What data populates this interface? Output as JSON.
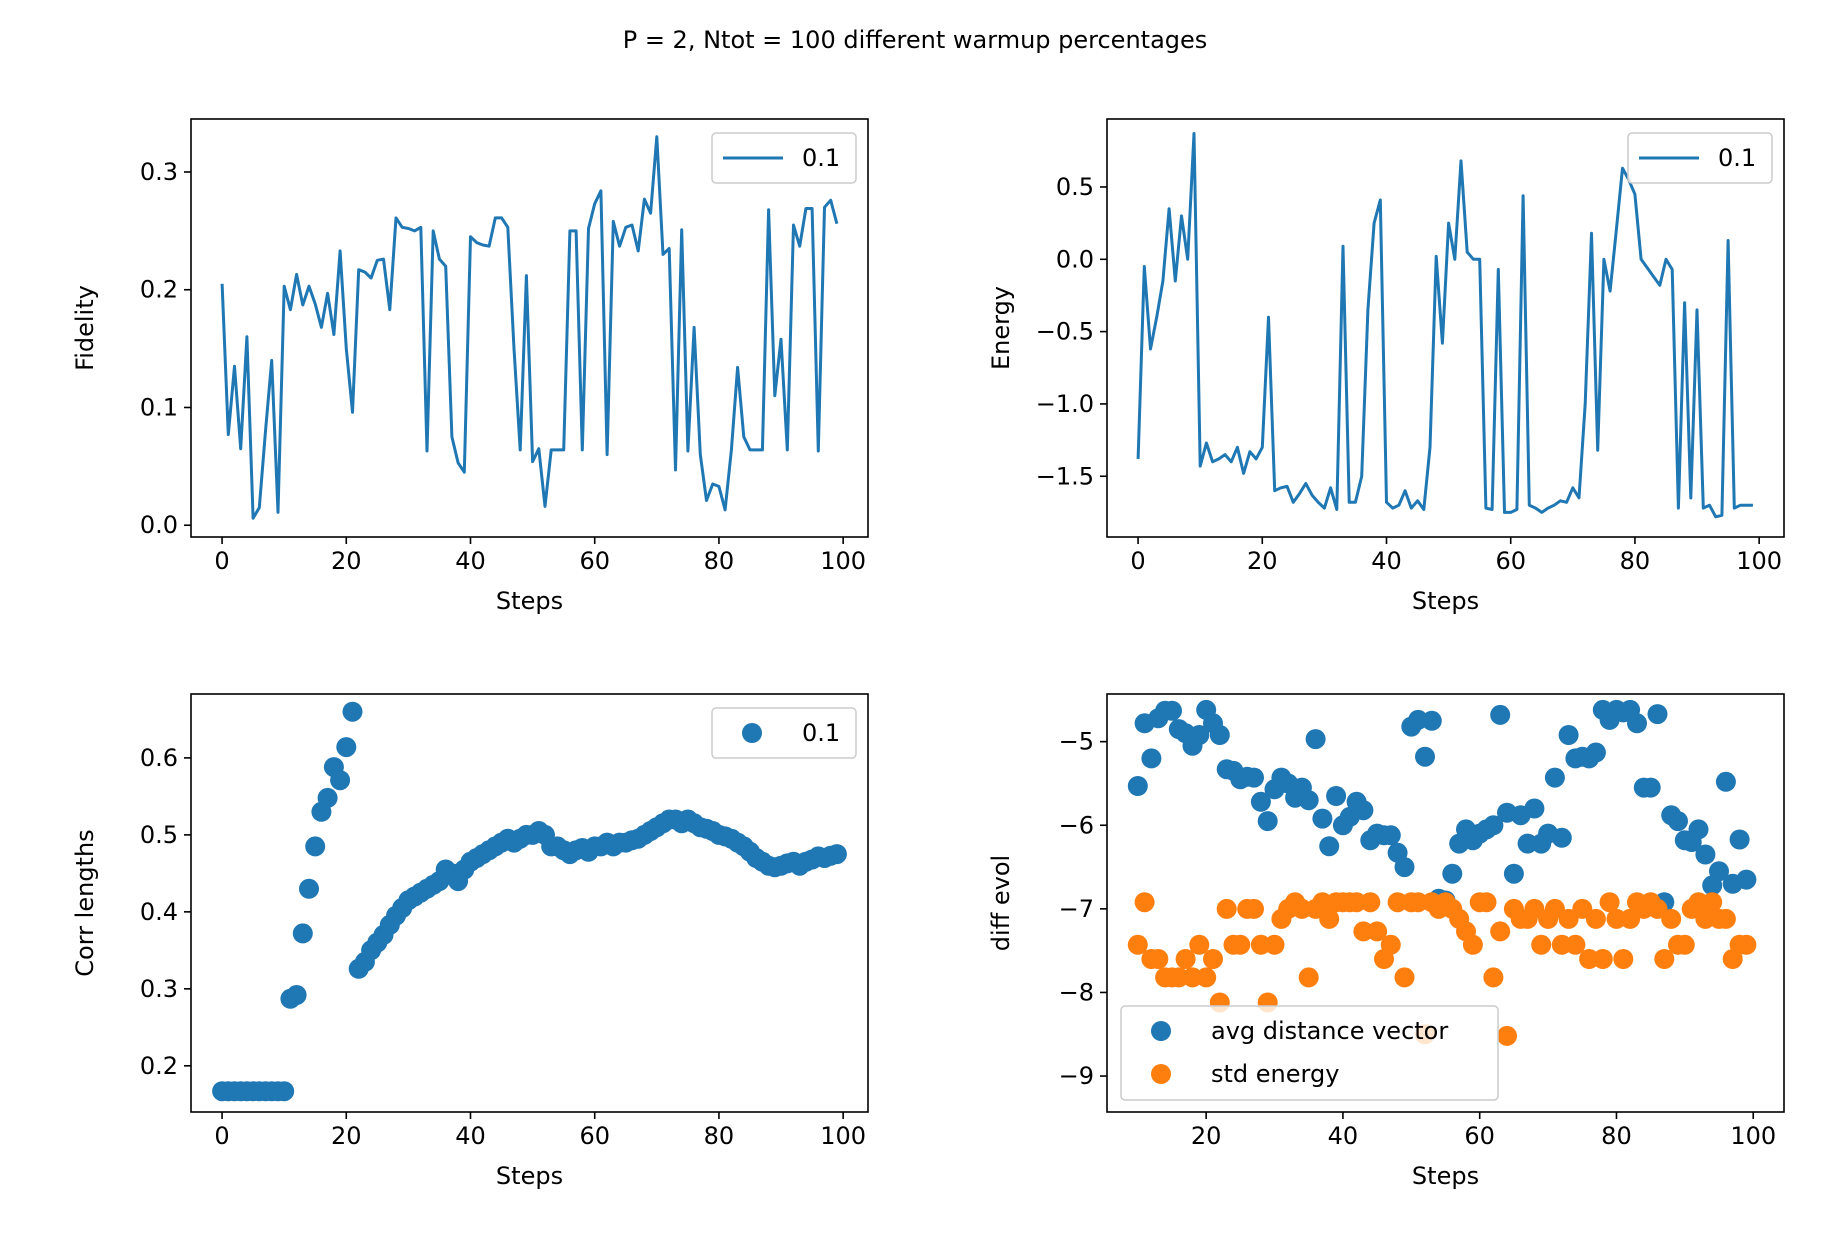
{
  "figure": {
    "title": "P = 2, Ntot = 100 different warmup percentages"
  },
  "chart_data": [
    {
      "type": "line",
      "xlabel": "Steps",
      "ylabel": "Fidelity",
      "xlim": [
        -5,
        104
      ],
      "ylim": [
        -0.01,
        0.345
      ],
      "xticks": [
        0,
        20,
        40,
        60,
        80,
        100
      ],
      "yticks": [
        0.0,
        0.1,
        0.2,
        0.3
      ],
      "yticklabels": [
        "0.0",
        "0.1",
        "0.2",
        "0.3"
      ],
      "legend": {
        "position": "upper right",
        "kind": "line"
      },
      "grid": false,
      "series": [
        {
          "name": "0.1",
          "color": "#1f77b4",
          "x": [
            0,
            1,
            2,
            3,
            4,
            5,
            6,
            7,
            8,
            9,
            10,
            11,
            12,
            13,
            14,
            15,
            16,
            17,
            18,
            19,
            20,
            21,
            22,
            23,
            24,
            25,
            26,
            27,
            28,
            29,
            30,
            31,
            32,
            33,
            34,
            35,
            36,
            37,
            38,
            39,
            40,
            41,
            42,
            43,
            44,
            45,
            46,
            47,
            48,
            49,
            50,
            51,
            52,
            53,
            54,
            55,
            56,
            57,
            58,
            59,
            60,
            61,
            62,
            63,
            64,
            65,
            66,
            67,
            68,
            69,
            70,
            71,
            72,
            73,
            74,
            75,
            76,
            77,
            78,
            79,
            80,
            81,
            82,
            83,
            84,
            85,
            86,
            87,
            88,
            89,
            90,
            91,
            92,
            93,
            94,
            95,
            96,
            97,
            98,
            99
          ],
          "y": [
            0.205,
            0.077,
            0.135,
            0.065,
            0.16,
            0.006,
            0.015,
            0.08,
            0.14,
            0.011,
            0.203,
            0.183,
            0.213,
            0.187,
            0.203,
            0.188,
            0.168,
            0.197,
            0.162,
            0.233,
            0.15,
            0.096,
            0.217,
            0.215,
            0.21,
            0.225,
            0.226,
            0.183,
            0.261,
            0.253,
            0.252,
            0.25,
            0.253,
            0.063,
            0.25,
            0.226,
            0.22,
            0.075,
            0.053,
            0.045,
            0.245,
            0.24,
            0.238,
            0.237,
            0.261,
            0.261,
            0.253,
            0.15,
            0.064,
            0.212,
            0.054,
            0.065,
            0.016,
            0.064,
            0.064,
            0.064,
            0.25,
            0.25,
            0.064,
            0.252,
            0.273,
            0.284,
            0.06,
            0.258,
            0.237,
            0.253,
            0.255,
            0.233,
            0.277,
            0.265,
            0.33,
            0.23,
            0.235,
            0.047,
            0.251,
            0.063,
            0.168,
            0.06,
            0.021,
            0.035,
            0.033,
            0.013,
            0.064,
            0.134,
            0.075,
            0.064,
            0.064,
            0.064,
            0.268,
            0.11,
            0.158,
            0.064,
            0.255,
            0.237,
            0.269,
            0.269,
            0.063,
            0.27,
            0.276,
            0.256
          ]
        }
      ]
    },
    {
      "type": "line",
      "xlabel": "Steps",
      "ylabel": "Energy",
      "xlim": [
        -5,
        104
      ],
      "ylim": [
        -1.92,
        0.97
      ],
      "xticks": [
        0,
        20,
        40,
        60,
        80,
        100
      ],
      "yticks": [
        0.5,
        0.0,
        -0.5,
        -1.0,
        -1.5
      ],
      "yticklabels": [
        "0.5",
        "0.0",
        "−0.5",
        "−1.0",
        "−1.5"
      ],
      "legend": {
        "position": "upper right",
        "kind": "line"
      },
      "grid": false,
      "series": [
        {
          "name": "0.1",
          "color": "#1f77b4",
          "x": [
            0,
            1,
            2,
            3,
            4,
            5,
            6,
            7,
            8,
            9,
            10,
            11,
            12,
            13,
            14,
            15,
            16,
            17,
            18,
            19,
            20,
            21,
            22,
            23,
            24,
            25,
            26,
            27,
            28,
            29,
            30,
            31,
            32,
            33,
            34,
            35,
            36,
            37,
            38,
            39,
            40,
            41,
            42,
            43,
            44,
            45,
            46,
            47,
            48,
            49,
            50,
            51,
            52,
            53,
            54,
            55,
            56,
            57,
            58,
            59,
            60,
            61,
            62,
            63,
            64,
            65,
            66,
            67,
            68,
            69,
            70,
            71,
            72,
            73,
            74,
            75,
            76,
            77,
            78,
            79,
            80,
            81,
            82,
            83,
            84,
            85,
            86,
            87,
            88,
            89,
            90,
            91,
            92,
            93,
            94,
            95,
            96,
            97,
            98,
            99
          ],
          "y": [
            -1.38,
            -0.05,
            -0.62,
            -0.4,
            -0.15,
            0.35,
            -0.15,
            0.3,
            0.0,
            0.87,
            -1.43,
            -1.27,
            -1.4,
            -1.38,
            -1.35,
            -1.4,
            -1.3,
            -1.48,
            -1.33,
            -1.38,
            -1.3,
            -0.4,
            -1.6,
            -1.58,
            -1.57,
            -1.68,
            -1.62,
            -1.55,
            -1.63,
            -1.68,
            -1.72,
            -1.58,
            -1.73,
            0.09,
            -1.68,
            -1.68,
            -1.5,
            -0.35,
            0.25,
            0.41,
            -1.68,
            -1.72,
            -1.7,
            -1.6,
            -1.72,
            -1.67,
            -1.73,
            -1.3,
            0.02,
            -0.58,
            0.25,
            0.0,
            0.68,
            0.05,
            0.0,
            0.0,
            -1.72,
            -1.73,
            -0.07,
            -1.75,
            -1.75,
            -1.73,
            0.44,
            -1.7,
            -1.72,
            -1.75,
            -1.72,
            -1.7,
            -1.67,
            -1.68,
            -1.58,
            -1.65,
            -1.0,
            0.18,
            -1.32,
            0.0,
            -0.22,
            0.2,
            0.63,
            0.55,
            0.45,
            0.0,
            -0.06,
            -0.12,
            -0.18,
            0.0,
            -0.07,
            -1.72,
            -0.3,
            -1.65,
            -0.35,
            -1.72,
            -1.7,
            -1.78,
            -1.77,
            0.13,
            -1.72,
            -1.7,
            -1.7,
            -1.7
          ]
        }
      ]
    },
    {
      "type": "scatter",
      "xlabel": "Steps",
      "ylabel": "Corr lengths",
      "xlim": [
        -5,
        104
      ],
      "ylim": [
        0.14,
        0.683
      ],
      "xticks": [
        0,
        20,
        40,
        60,
        80,
        100
      ],
      "yticks": [
        0.2,
        0.3,
        0.4,
        0.5,
        0.6
      ],
      "yticklabels": [
        "0.2",
        "0.3",
        "0.4",
        "0.5",
        "0.6"
      ],
      "legend": {
        "position": "upper right",
        "kind": "marker"
      },
      "grid": false,
      "series": [
        {
          "name": "0.1",
          "color": "#1f77b4",
          "x": [
            0,
            1,
            2,
            3,
            4,
            5,
            6,
            7,
            8,
            9,
            10,
            11,
            12,
            13,
            14,
            15,
            16,
            17,
            18,
            19,
            20,
            21,
            22,
            23,
            24,
            25,
            26,
            27,
            28,
            29,
            30,
            31,
            32,
            33,
            34,
            35,
            36,
            37,
            38,
            39,
            40,
            41,
            42,
            43,
            44,
            45,
            46,
            47,
            48,
            49,
            50,
            51,
            52,
            53,
            54,
            55,
            56,
            57,
            58,
            59,
            60,
            61,
            62,
            63,
            64,
            65,
            66,
            67,
            68,
            69,
            70,
            71,
            72,
            73,
            74,
            75,
            76,
            77,
            78,
            79,
            80,
            81,
            82,
            83,
            84,
            85,
            86,
            87,
            88,
            89,
            90,
            91,
            92,
            93,
            94,
            95,
            96,
            97,
            98,
            99
          ],
          "y": [
            0.167,
            0.167,
            0.167,
            0.167,
            0.167,
            0.167,
            0.167,
            0.167,
            0.167,
            0.167,
            0.167,
            0.287,
            0.292,
            0.372,
            0.43,
            0.485,
            0.53,
            0.548,
            0.588,
            0.571,
            0.614,
            0.66,
            0.326,
            0.335,
            0.35,
            0.36,
            0.37,
            0.383,
            0.395,
            0.405,
            0.415,
            0.42,
            0.425,
            0.43,
            0.435,
            0.44,
            0.455,
            0.45,
            0.44,
            0.455,
            0.465,
            0.47,
            0.475,
            0.48,
            0.485,
            0.49,
            0.495,
            0.49,
            0.495,
            0.5,
            0.5,
            0.505,
            0.5,
            0.485,
            0.485,
            0.48,
            0.475,
            0.48,
            0.483,
            0.478,
            0.485,
            0.485,
            0.49,
            0.485,
            0.49,
            0.49,
            0.493,
            0.495,
            0.5,
            0.505,
            0.51,
            0.515,
            0.52,
            0.52,
            0.515,
            0.52,
            0.515,
            0.51,
            0.508,
            0.505,
            0.5,
            0.498,
            0.495,
            0.49,
            0.485,
            0.478,
            0.47,
            0.465,
            0.46,
            0.458,
            0.46,
            0.463,
            0.465,
            0.46,
            0.465,
            0.468,
            0.472,
            0.47,
            0.473,
            0.475
          ]
        }
      ]
    },
    {
      "type": "scatter",
      "xlabel": "Steps",
      "ylabel": "diff evol",
      "xlim": [
        5.5,
        104.5
      ],
      "ylim": [
        -9.43,
        -4.43
      ],
      "xticks": [
        20,
        40,
        60,
        80,
        100
      ],
      "yticks": [
        -5,
        -6,
        -7,
        -8,
        -9
      ],
      "yticklabels": [
        "−5",
        "−6",
        "−7",
        "−8",
        "−9"
      ],
      "legend": {
        "position": "lower left",
        "kind": "marker"
      },
      "grid": false,
      "series": [
        {
          "name": "avg distance vector",
          "color": "#1f77b4",
          "x": [
            10,
            11,
            12,
            13,
            14,
            15,
            16,
            17,
            18,
            19,
            20,
            21,
            22,
            23,
            24,
            25,
            26,
            27,
            28,
            29,
            30,
            31,
            32,
            33,
            34,
            35,
            36,
            37,
            38,
            39,
            40,
            41,
            42,
            43,
            44,
            45,
            46,
            47,
            48,
            49,
            50,
            51,
            52,
            53,
            54,
            55,
            56,
            57,
            58,
            59,
            60,
            61,
            62,
            63,
            64,
            65,
            66,
            67,
            68,
            69,
            70,
            71,
            72,
            73,
            74,
            75,
            76,
            77,
            78,
            79,
            80,
            81,
            82,
            83,
            84,
            85,
            86,
            87,
            88,
            89,
            90,
            91,
            92,
            93,
            94,
            95,
            96,
            97,
            98,
            99
          ],
          "y": [
            -5.53,
            -4.78,
            -5.2,
            -4.72,
            -4.63,
            -4.63,
            -4.85,
            -4.9,
            -5.05,
            -4.92,
            -4.62,
            -4.78,
            -4.92,
            -5.33,
            -5.35,
            -5.45,
            -5.42,
            -5.43,
            -5.72,
            -5.95,
            -5.57,
            -5.43,
            -5.5,
            -5.67,
            -5.55,
            -5.7,
            -4.97,
            -5.92,
            -6.25,
            -5.65,
            -6.0,
            -5.9,
            -5.72,
            -5.82,
            -6.18,
            -6.1,
            -6.12,
            -6.12,
            -6.33,
            -6.5,
            -4.82,
            -4.74,
            -5.18,
            -4.75,
            -6.88,
            -6.9,
            -6.58,
            -6.22,
            -6.05,
            -6.18,
            -6.1,
            -6.05,
            -6.0,
            -4.68,
            -5.85,
            -6.58,
            -5.88,
            -6.22,
            -5.8,
            -6.22,
            -6.1,
            -5.43,
            -6.15,
            -4.92,
            -5.2,
            -5.18,
            -5.2,
            -5.13,
            -4.62,
            -4.74,
            -4.62,
            -4.65,
            -4.62,
            -4.78,
            -5.55,
            -5.55,
            -4.67,
            -6.92,
            -5.88,
            -5.95,
            -6.18,
            -6.2,
            -6.05,
            -6.35,
            -6.72,
            -6.55,
            -5.48,
            -6.7,
            -6.17,
            -6.65
          ]
        },
        {
          "name": "std energy",
          "color": "#ff7f0e",
          "x": [
            10,
            11,
            12,
            13,
            14,
            15,
            16,
            17,
            18,
            19,
            20,
            21,
            22,
            23,
            24,
            25,
            26,
            27,
            28,
            29,
            30,
            31,
            32,
            33,
            34,
            35,
            36,
            37,
            38,
            39,
            40,
            41,
            42,
            43,
            44,
            45,
            46,
            47,
            48,
            49,
            50,
            51,
            52,
            53,
            54,
            55,
            56,
            57,
            58,
            59,
            60,
            61,
            62,
            63,
            64,
            65,
            66,
            67,
            68,
            69,
            70,
            71,
            72,
            73,
            74,
            75,
            76,
            77,
            78,
            79,
            80,
            81,
            82,
            83,
            84,
            85,
            86,
            87,
            88,
            89,
            90,
            91,
            92,
            93,
            94,
            95,
            96,
            97,
            98,
            99
          ],
          "y": [
            -7.43,
            -6.92,
            -7.6,
            -7.6,
            -7.82,
            -7.82,
            -7.82,
            -7.6,
            -7.82,
            -7.43,
            -7.82,
            -7.6,
            -8.12,
            -7.0,
            -7.43,
            -7.43,
            -7.0,
            -7.0,
            -7.43,
            -8.12,
            -7.43,
            -7.12,
            -7.0,
            -6.92,
            -7.0,
            -7.82,
            -7.0,
            -6.92,
            -7.12,
            -6.92,
            -6.92,
            -6.92,
            -6.92,
            -7.27,
            -6.92,
            -7.27,
            -7.6,
            -7.43,
            -6.92,
            -7.82,
            -6.92,
            -6.92,
            -8.5,
            -6.92,
            -7.0,
            -6.92,
            -7.0,
            -7.12,
            -7.27,
            -7.43,
            -6.92,
            -6.92,
            -7.82,
            -7.27,
            -8.52,
            -7.0,
            -7.12,
            -7.12,
            -7.0,
            -7.43,
            -7.12,
            -7.0,
            -7.43,
            -7.12,
            -7.43,
            -7.0,
            -7.6,
            -7.12,
            -7.6,
            -6.92,
            -7.12,
            -7.6,
            -7.12,
            -6.92,
            -7.0,
            -6.92,
            -7.0,
            -7.6,
            -7.12,
            -7.43,
            -7.43,
            -7.0,
            -6.92,
            -7.12,
            -6.92,
            -7.12,
            -7.12,
            -7.6,
            -7.43,
            -7.43
          ]
        }
      ]
    }
  ]
}
